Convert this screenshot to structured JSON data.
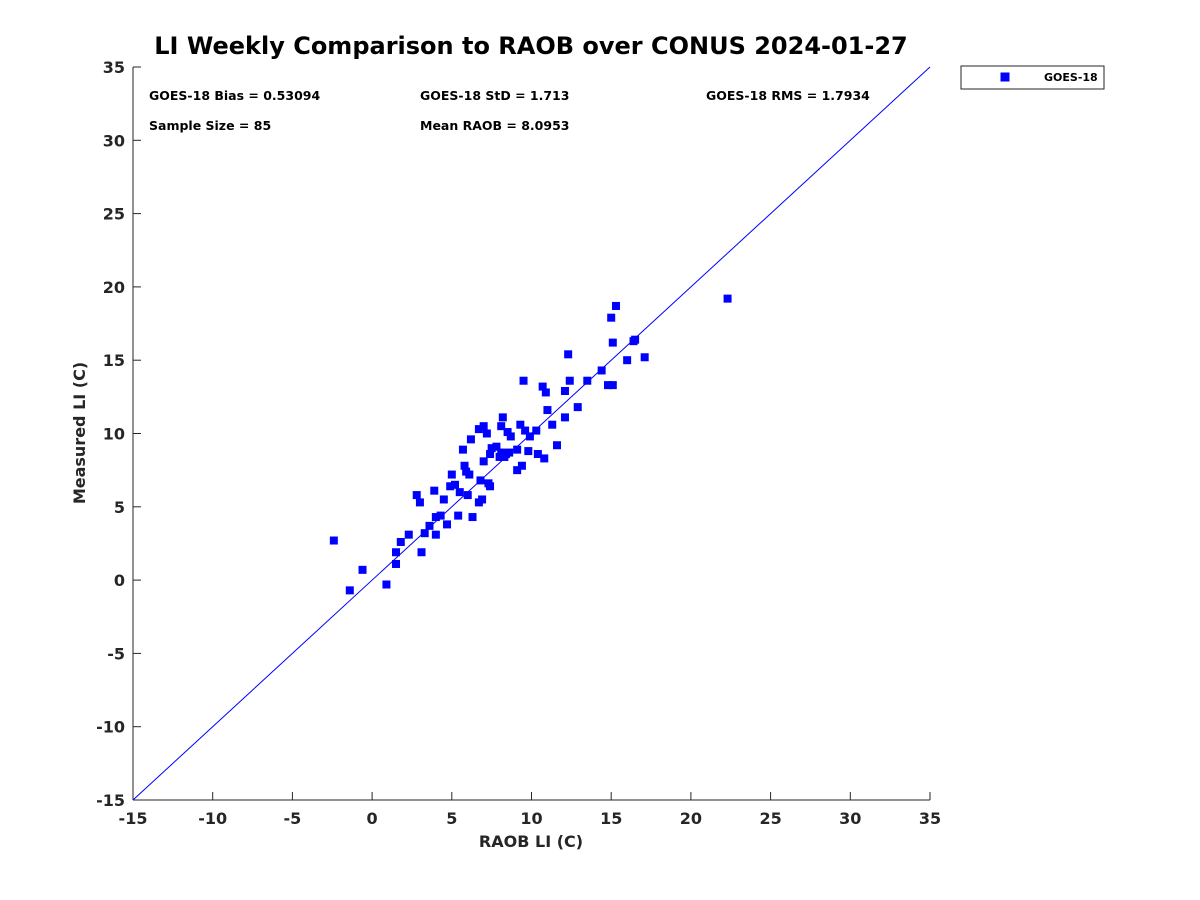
{
  "chart_data": {
    "type": "scatter",
    "title": "LI Weekly Comparison to RAOB over CONUS 2024-01-27",
    "xlabel": "RAOB LI (C)",
    "ylabel": "Measured LI (C)",
    "xlim": [
      -15,
      35
    ],
    "ylim": [
      -15,
      35
    ],
    "xticks": [
      -15,
      -10,
      -5,
      0,
      5,
      10,
      15,
      20,
      25,
      30,
      35
    ],
    "yticks": [
      -15,
      -10,
      -5,
      0,
      5,
      10,
      15,
      20,
      25,
      30,
      35
    ],
    "grid": false,
    "legend_position": "top-right outside",
    "reference_line": {
      "type": "one-to-one",
      "color": "#0000ff"
    },
    "stats": [
      {
        "key": "bias",
        "text": "GOES-18 Bias = 0.53094"
      },
      {
        "key": "std",
        "text": "GOES-18 StD = 1.713"
      },
      {
        "key": "rms",
        "text": "GOES-18 RMS = 1.7934"
      },
      {
        "key": "sample",
        "text": "Sample Size = 85"
      },
      {
        "key": "mean",
        "text": "Mean RAOB = 8.0953"
      }
    ],
    "series": [
      {
        "name": "GOES-18",
        "color": "#0000ff",
        "marker": "square",
        "points": [
          [
            -2.4,
            2.7
          ],
          [
            -1.4,
            -0.7
          ],
          [
            -0.6,
            0.7
          ],
          [
            0.9,
            -0.3
          ],
          [
            1.5,
            1.1
          ],
          [
            1.5,
            1.9
          ],
          [
            1.8,
            2.6
          ],
          [
            2.3,
            3.1
          ],
          [
            2.8,
            5.8
          ],
          [
            3.0,
            5.3
          ],
          [
            3.1,
            1.9
          ],
          [
            3.3,
            3.2
          ],
          [
            3.6,
            3.7
          ],
          [
            3.9,
            6.1
          ],
          [
            4.0,
            4.3
          ],
          [
            4.0,
            3.1
          ],
          [
            4.3,
            4.4
          ],
          [
            4.5,
            5.5
          ],
          [
            4.7,
            3.8
          ],
          [
            4.9,
            6.4
          ],
          [
            5.0,
            7.2
          ],
          [
            5.2,
            6.5
          ],
          [
            5.4,
            4.4
          ],
          [
            5.7,
            8.9
          ],
          [
            5.8,
            7.8
          ],
          [
            5.9,
            7.4
          ],
          [
            6.0,
            5.8
          ],
          [
            6.1,
            7.2
          ],
          [
            6.2,
            9.6
          ],
          [
            6.3,
            4.3
          ],
          [
            6.7,
            10.3
          ],
          [
            6.7,
            5.3
          ],
          [
            6.8,
            6.8
          ],
          [
            6.9,
            5.5
          ],
          [
            7.0,
            10.5
          ],
          [
            7.0,
            8.1
          ],
          [
            7.2,
            10.0
          ],
          [
            7.3,
            6.6
          ],
          [
            7.4,
            6.4
          ],
          [
            7.4,
            8.6
          ],
          [
            7.5,
            9.0
          ],
          [
            8.0,
            8.4
          ],
          [
            8.1,
            8.7
          ],
          [
            8.1,
            10.5
          ],
          [
            8.2,
            11.1
          ],
          [
            8.3,
            8.4
          ],
          [
            8.5,
            10.1
          ],
          [
            8.6,
            8.7
          ],
          [
            8.7,
            9.8
          ],
          [
            9.1,
            8.9
          ],
          [
            9.1,
            7.5
          ],
          [
            9.3,
            10.6
          ],
          [
            9.4,
            7.8
          ],
          [
            9.5,
            13.6
          ],
          [
            9.6,
            10.2
          ],
          [
            9.8,
            8.8
          ],
          [
            9.9,
            9.8
          ],
          [
            10.3,
            10.2
          ],
          [
            10.4,
            8.6
          ],
          [
            10.7,
            13.2
          ],
          [
            10.8,
            8.3
          ],
          [
            10.9,
            12.8
          ],
          [
            11.0,
            11.6
          ],
          [
            11.3,
            10.6
          ],
          [
            11.6,
            9.2
          ],
          [
            12.1,
            11.1
          ],
          [
            12.1,
            12.9
          ],
          [
            12.3,
            15.4
          ],
          [
            12.4,
            13.6
          ],
          [
            12.9,
            11.8
          ],
          [
            13.5,
            13.6
          ],
          [
            14.4,
            14.3
          ],
          [
            14.8,
            13.3
          ],
          [
            15.0,
            17.9
          ],
          [
            15.1,
            13.3
          ],
          [
            15.1,
            16.2
          ],
          [
            15.3,
            18.7
          ],
          [
            16.0,
            15.0
          ],
          [
            16.4,
            16.3
          ],
          [
            16.5,
            16.4
          ],
          [
            17.1,
            15.2
          ],
          [
            22.3,
            19.2
          ],
          [
            7.8,
            9.1
          ],
          [
            8.4,
            8.6
          ],
          [
            5.5,
            6.0
          ]
        ]
      }
    ]
  }
}
